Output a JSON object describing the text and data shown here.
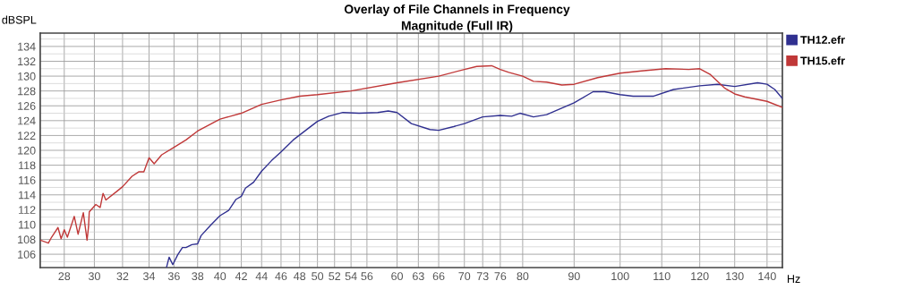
{
  "chart_data": {
    "type": "line",
    "title": "Overlay of File Channels in Frequency",
    "subtitle": "Magnitude (Full IR)",
    "xlabel": "Hz",
    "ylabel": "dBSPL",
    "log": "x",
    "xlim": [
      26.5,
      145
    ],
    "ylim": [
      104.2,
      135.8
    ],
    "xticks": [
      28,
      30,
      32,
      34,
      36,
      38,
      40,
      42,
      44,
      46,
      48,
      50,
      52,
      54,
      56,
      60,
      63,
      66,
      70,
      73,
      76,
      80,
      90,
      100,
      110,
      120,
      130,
      140
    ],
    "yticks": [
      106,
      108,
      110,
      112,
      114,
      116,
      118,
      120,
      122,
      124,
      126,
      128,
      130,
      132,
      134
    ],
    "grid": true,
    "legend": "top right",
    "marker": "none",
    "line_style": "solid",
    "series": [
      {
        "name": "TH12.efr",
        "color": "#303090",
        "x": [
          35.4,
          35.6,
          35.9,
          36.3,
          36.7,
          37,
          37.5,
          38,
          38.3,
          39.2,
          40,
          40.8,
          41.5,
          42,
          42.4,
          43.2,
          44,
          45,
          46,
          47.3,
          49,
          50,
          51.3,
          53,
          55,
          57.4,
          58.8,
          60,
          62,
          64.7,
          66,
          68.3,
          70,
          73,
          76,
          78,
          79.5,
          82,
          84.5,
          90,
          94,
          96.5,
          100,
          103,
          108,
          113,
          120,
          125,
          130,
          137,
          140,
          142.5,
          145
        ],
        "values": [
          104.3,
          105.6,
          104.6,
          105.9,
          106.9,
          106.9,
          107.3,
          107.4,
          108.5,
          110.0,
          111.2,
          111.9,
          113.4,
          113.8,
          114.9,
          115.7,
          117.2,
          118.6,
          119.8,
          121.4,
          123.0,
          123.9,
          124.6,
          125.1,
          125.0,
          125.1,
          125.3,
          125.1,
          123.6,
          122.8,
          122.7,
          123.2,
          123.6,
          124.5,
          124.7,
          124.6,
          125.0,
          124.5,
          124.8,
          126.4,
          127.9,
          127.9,
          127.5,
          127.3,
          127.3,
          128.2,
          128.7,
          128.9,
          128.6,
          129.1,
          128.9,
          128.2,
          127.0
        ]
      },
      {
        "name": "TH15.efr",
        "color": "#c03838",
        "x": [
          26.5,
          27,
          27.2,
          27.6,
          27.8,
          28,
          28.2,
          28.65,
          28.9,
          29.25,
          29.5,
          29.6,
          29.65,
          30.1,
          30.4,
          30.6,
          30.8,
          31.6,
          32,
          32.7,
          33.2,
          33.6,
          34,
          34.4,
          35,
          36,
          37,
          38,
          40,
          42,
          44,
          46,
          48,
          50,
          54,
          60,
          66,
          70,
          72,
          74.5,
          76,
          77.5,
          80,
          82,
          84.5,
          87.5,
          90,
          95,
          100,
          105,
          111,
          117,
          120,
          123,
          127,
          130,
          133,
          140,
          145
        ],
        "values": [
          107.9,
          107.5,
          108.3,
          109.6,
          108.1,
          109.3,
          108.3,
          111.1,
          108.7,
          111.6,
          107.9,
          109.7,
          111.7,
          112.7,
          112.3,
          114.2,
          113.3,
          114.5,
          115.1,
          116.5,
          117.1,
          117.1,
          119.0,
          118.2,
          119.4,
          120.4,
          121.4,
          122.6,
          124.2,
          125.0,
          126.2,
          126.8,
          127.3,
          127.5,
          128.0,
          129.1,
          130.0,
          130.9,
          131.3,
          131.4,
          130.9,
          130.5,
          130.0,
          129.3,
          129.2,
          128.8,
          128.9,
          129.8,
          130.4,
          130.7,
          131.0,
          130.9,
          131.0,
          130.2,
          128.4,
          127.6,
          127.2,
          126.6,
          125.8
        ]
      }
    ]
  }
}
